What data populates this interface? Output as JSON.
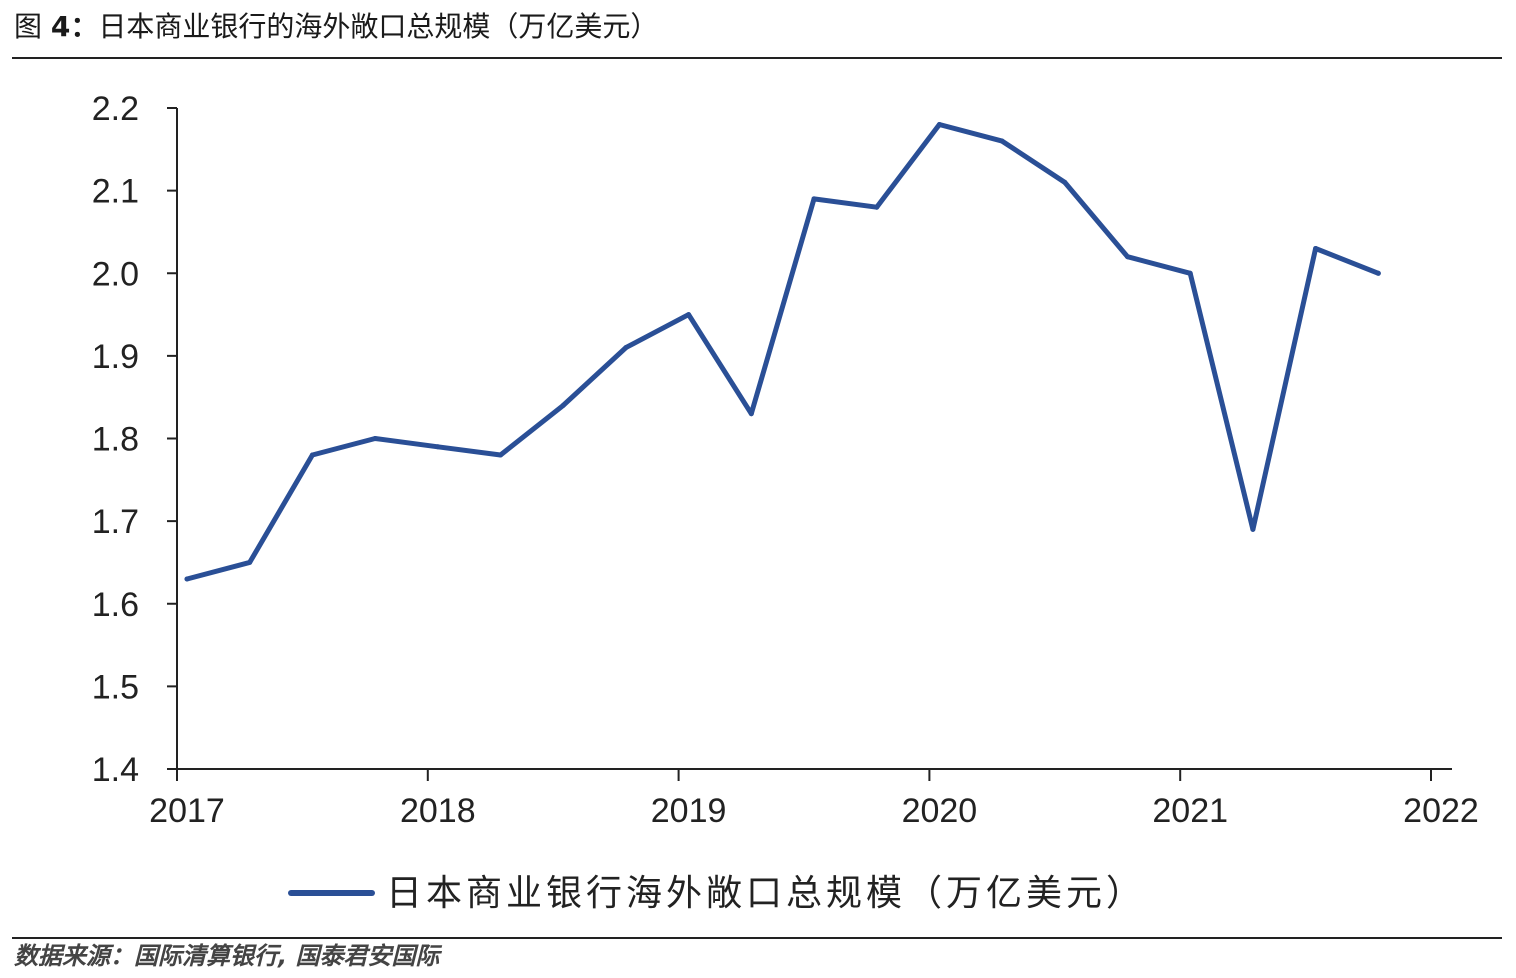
{
  "title": {
    "prefix": "图",
    "number": "4：",
    "text": "日本商业银行的海外敞口总规模（万亿美元）"
  },
  "source": "数据来源：国际清算银行, 国泰君安国际",
  "chart_data": {
    "type": "line",
    "title": "日本商业银行的海外敞口总规模（万亿美元）",
    "xlabel": "",
    "ylabel": "",
    "ylim": [
      1.4,
      2.2
    ],
    "xlim": [
      "2017-01",
      "2022-01"
    ],
    "y_ticks": [
      "1.4",
      "1.5",
      "1.6",
      "1.7",
      "1.8",
      "1.9",
      "2.0",
      "2.1",
      "2.2"
    ],
    "x_ticks": [
      "2017",
      "2018",
      "2019",
      "2020",
      "2021",
      "2022"
    ],
    "grid": false,
    "legend": "bottom-center",
    "series": [
      {
        "name": "日本商业银行海外敞口总规模（万亿美元）",
        "color": "#2a4f96",
        "points": [
          {
            "x": "2017Q1",
            "y": 1.63
          },
          {
            "x": "2017Q2",
            "y": 1.65
          },
          {
            "x": "2017Q3",
            "y": 1.78
          },
          {
            "x": "2017Q4",
            "y": 1.8
          },
          {
            "x": "2018Q1",
            "y": 1.79
          },
          {
            "x": "2018Q2",
            "y": 1.78
          },
          {
            "x": "2018Q3",
            "y": 1.84
          },
          {
            "x": "2018Q4",
            "y": 1.91
          },
          {
            "x": "2019Q1",
            "y": 1.95
          },
          {
            "x": "2019Q2",
            "y": 1.83
          },
          {
            "x": "2019Q3",
            "y": 2.09
          },
          {
            "x": "2019Q4",
            "y": 2.08
          },
          {
            "x": "2020Q1",
            "y": 2.18
          },
          {
            "x": "2020Q2",
            "y": 2.16
          },
          {
            "x": "2020Q3",
            "y": 2.11
          },
          {
            "x": "2020Q4",
            "y": 2.02
          },
          {
            "x": "2021Q1",
            "y": 2.0
          },
          {
            "x": "2021Q2",
            "y": 1.69
          },
          {
            "x": "2021Q3",
            "y": 2.03
          },
          {
            "x": "2021Q4",
            "y": 2.0
          }
        ]
      }
    ]
  }
}
